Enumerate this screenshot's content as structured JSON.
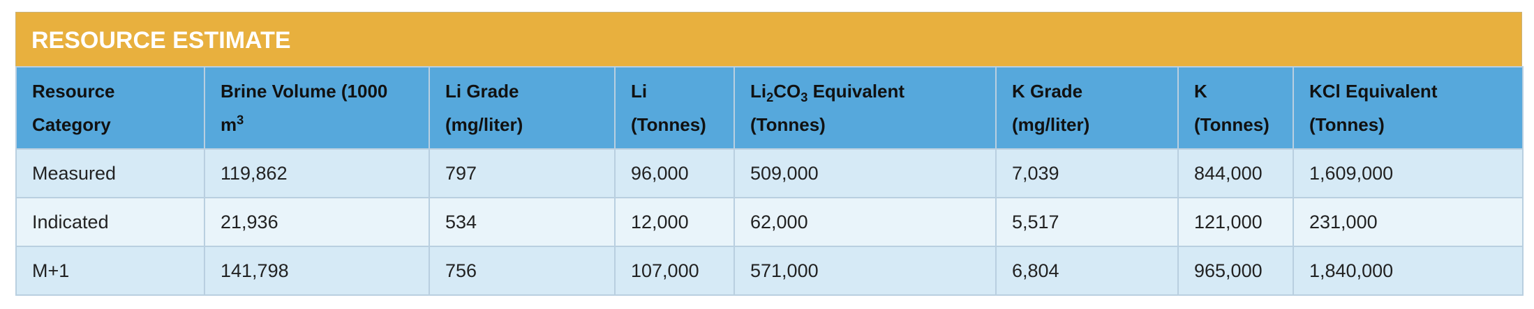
{
  "title": "RESOURCE ESTIMATE",
  "table": {
    "header": [
      [
        "Resource Category"
      ],
      [
        "Brine Volume (1000 m",
        "3"
      ],
      [
        "Li Grade (mg/liter)"
      ],
      [
        "Li (Tonnes)"
      ],
      [
        "Li",
        "2",
        "CO",
        "3",
        " Equivalent (Tonnes)"
      ],
      [
        "K Grade (mg/liter)"
      ],
      [
        "K (Tonnes)"
      ],
      [
        "KCl Equivalent (Tonnes)"
      ]
    ],
    "rows": [
      [
        "Measured",
        "119,862",
        "797",
        "96,000",
        "509,000",
        "7,039",
        "844,000",
        "1,609,000"
      ],
      [
        "Indicated",
        "21,936",
        "534",
        "12,000",
        "62,000",
        "5,517",
        "121,000",
        "231,000"
      ],
      [
        "M+1",
        "141,798",
        "756",
        "107,000",
        "571,000",
        "6,804",
        "965,000",
        "1,840,000"
      ]
    ]
  }
}
